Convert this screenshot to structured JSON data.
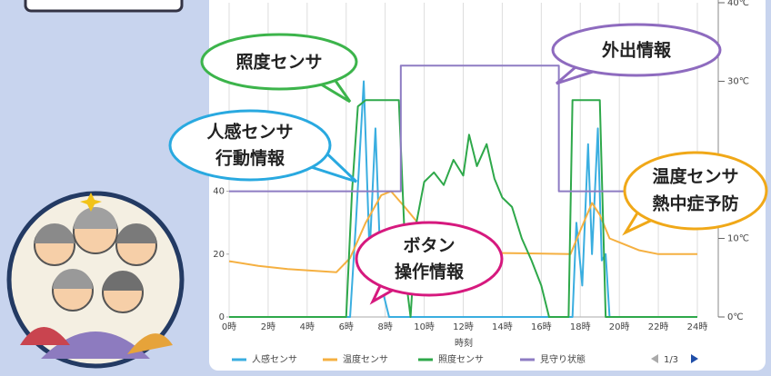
{
  "chart_data": {
    "type": "line",
    "xlabel": "時刻",
    "xlim": [
      0,
      24
    ],
    "xticks": [
      {
        "value": 0,
        "label": "0時"
      },
      {
        "value": 2,
        "label": "2時"
      },
      {
        "value": 4,
        "label": "4時"
      },
      {
        "value": 6,
        "label": "6時"
      },
      {
        "value": 8,
        "label": "8時"
      },
      {
        "value": 10,
        "label": "10時"
      },
      {
        "value": 12,
        "label": "12時"
      },
      {
        "value": 14,
        "label": "14時"
      },
      {
        "value": 16,
        "label": "16時"
      },
      {
        "value": 18,
        "label": "18時"
      },
      {
        "value": 20,
        "label": "20時"
      },
      {
        "value": 22,
        "label": "22時"
      },
      {
        "value": 24,
        "label": "24時"
      }
    ],
    "ylim": [
      0,
      100
    ],
    "yticks": [
      0,
      20,
      40
    ],
    "y2lim": [
      0,
      40
    ],
    "y2ticks": [
      {
        "value": 0,
        "label": "0℃"
      },
      {
        "value": 10,
        "label": "10℃"
      },
      {
        "value": 30,
        "label": "30℃"
      },
      {
        "value": 40,
        "label": "40℃"
      }
    ],
    "grid": true,
    "legend": "bottom",
    "pager": "1/3",
    "series": [
      {
        "name": "人感センサ",
        "color": "#3aaee0",
        "x": [
          0,
          6.2,
          6.5,
          6.9,
          7.2,
          7.5,
          7.8,
          8.2,
          17.6,
          17.8,
          18.1,
          18.4,
          18.6,
          18.9,
          19.1,
          19.3,
          19.5,
          24
        ],
        "values": [
          0,
          0,
          30,
          75,
          20,
          60,
          10,
          0,
          0,
          30,
          10,
          55,
          20,
          60,
          18,
          20,
          0,
          0
        ]
      },
      {
        "name": "温度センサ",
        "color": "#f5b041",
        "axis": "y2",
        "x": [
          0,
          1.5,
          3,
          5.5,
          6.2,
          7,
          7.8,
          8.3,
          9,
          10,
          11,
          12,
          15,
          17.5,
          18,
          18.6,
          19,
          19.5,
          20,
          21,
          22,
          24
        ],
        "values": [
          7.1,
          6.5,
          6.1,
          5.7,
          7.5,
          12,
          15.5,
          16,
          14,
          11,
          9,
          8.2,
          8.1,
          8,
          11,
          14.5,
          13,
          10,
          9.5,
          8.5,
          8,
          8
        ]
      },
      {
        "name": "照度センサ",
        "color": "#2ea84a",
        "x": [
          0,
          6,
          6.3,
          6.6,
          7,
          8.7,
          9.1,
          9.3,
          9.6,
          10,
          10.5,
          11,
          11.5,
          12,
          12.3,
          12.7,
          13.2,
          13.6,
          14,
          14.5,
          15,
          15.5,
          16,
          16.4,
          17.4,
          17.6,
          19,
          19.3,
          24
        ],
        "values": [
          0,
          0,
          40,
          67,
          69,
          69,
          10,
          0,
          30,
          43,
          46,
          42,
          50,
          45,
          58,
          48,
          55,
          44,
          38,
          35,
          25,
          18,
          10,
          0,
          0,
          69,
          69,
          0,
          0
        ]
      },
      {
        "name": "見守り状態",
        "color": "#8e7cc3",
        "x": [
          0,
          8.8,
          8.8,
          16.9,
          16.9,
          24
        ],
        "values": [
          40,
          40,
          80,
          80,
          40,
          40
        ]
      }
    ]
  },
  "callouts": [
    {
      "lines": [
        "照度センサ"
      ]
    },
    {
      "lines": [
        "人感センサ",
        "行動情報"
      ]
    },
    {
      "lines": [
        "ボタン",
        "操作情報"
      ]
    },
    {
      "lines": [
        "外出情報"
      ]
    },
    {
      "lines": [
        "温度センサ",
        "熱中症予防"
      ]
    }
  ]
}
